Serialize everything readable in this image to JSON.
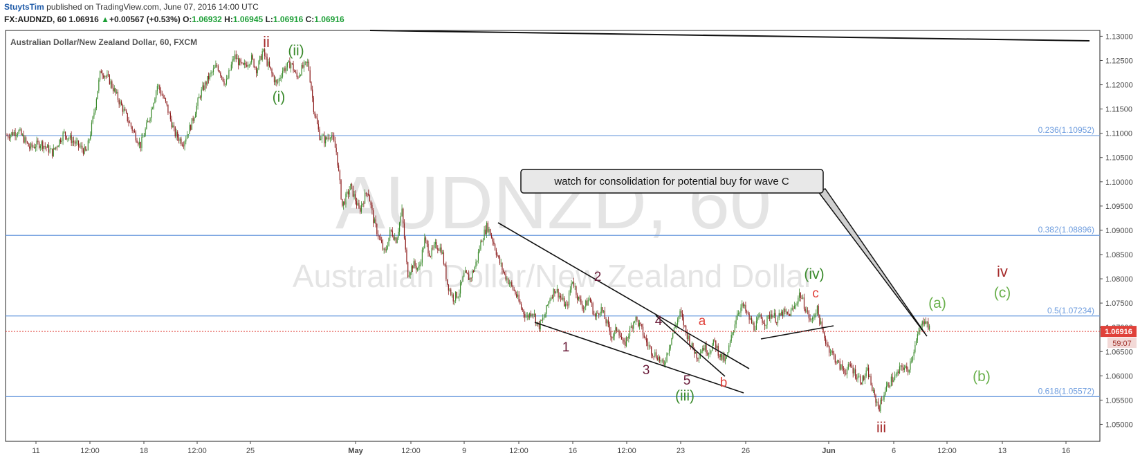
{
  "header": {
    "author": "StuytsTim",
    "published": "published on TradingView.com, June 07, 2016 14:00 UTC",
    "symbol": "FX:AUDNZD, 60",
    "last": "1.06916",
    "change_arrow": "▲",
    "change": "+0.00567 (+0.53%)",
    "open_label": "O:",
    "open": "1.06932",
    "high_label": "H:",
    "high": "1.06945",
    "low_label": "L:",
    "low": "1.06916",
    "close_label": "C:",
    "close": "1.06916"
  },
  "chart_data": {
    "type": "line",
    "title": "Australian Dollar/New Zealand Dollar, 60, FXCM",
    "watermark_symbol": "AUDNZD, 60",
    "watermark_name": "Australian Dollar/New Zealand Dollar",
    "ylim": [
      1.0465,
      1.1312
    ],
    "y_ticks": [
      "1.13000",
      "1.12500",
      "1.12000",
      "1.11500",
      "1.11000",
      "1.10500",
      "1.10000",
      "1.09500",
      "1.09000",
      "1.08500",
      "1.08000",
      "1.07500",
      "1.07000",
      "1.06500",
      "1.06000",
      "1.05500",
      "1.05000"
    ],
    "x_ticks": [
      "11",
      "12:00",
      "18",
      "12:00",
      "25",
      "May",
      "12:00",
      "9",
      "12:00",
      "16",
      "12:00",
      "23",
      "26",
      "Jun",
      "6",
      "12:00",
      "13",
      "16"
    ],
    "x_tick_bold": [
      "May",
      "Jun"
    ],
    "price_points": [
      [
        0,
        1.1095
      ],
      [
        0.04,
        1.1105
      ],
      [
        0.08,
        1.107
      ],
      [
        0.12,
        1.108
      ],
      [
        0.16,
        1.106
      ],
      [
        0.2,
        1.11
      ],
      [
        0.24,
        1.108
      ],
      [
        0.28,
        1.106
      ],
      [
        0.3,
        1.112
      ],
      [
        0.33,
        1.123
      ],
      [
        0.36,
        1.121
      ],
      [
        0.4,
        1.116
      ],
      [
        0.44,
        1.111
      ],
      [
        0.47,
        1.1075
      ],
      [
        0.5,
        1.113
      ],
      [
        0.53,
        1.12
      ],
      [
        0.56,
        1.116
      ],
      [
        0.59,
        1.11
      ],
      [
        0.62,
        1.108
      ],
      [
        0.65,
        1.112
      ],
      [
        0.68,
        1.118
      ],
      [
        0.71,
        1.1215
      ],
      [
        0.74,
        1.124
      ],
      [
        0.77,
        1.12
      ],
      [
        0.8,
        1.126
      ],
      [
        0.83,
        1.1235
      ],
      [
        0.86,
        1.1255
      ],
      [
        0.88,
        1.123
      ],
      [
        0.9,
        1.127
      ],
      [
        0.93,
        1.1225
      ],
      [
        0.95,
        1.12
      ],
      [
        0.97,
        1.123
      ],
      [
        1.0,
        1.1245
      ],
      [
        1.02,
        1.1215
      ],
      [
        1.04,
        1.1235
      ],
      [
        1.06,
        1.1245
      ],
      [
        1.08,
        1.115
      ],
      [
        1.1,
        1.1095
      ],
      [
        1.12,
        1.1085
      ],
      [
        1.14,
        1.11
      ],
      [
        1.16,
        1.106
      ],
      [
        1.18,
        1.095
      ],
      [
        1.21,
        1.099
      ],
      [
        1.24,
        1.094
      ],
      [
        1.27,
        1.0985
      ],
      [
        1.29,
        1.092
      ],
      [
        1.31,
        1.0885
      ],
      [
        1.33,
        1.085
      ],
      [
        1.35,
        1.09
      ],
      [
        1.37,
        1.088
      ],
      [
        1.39,
        1.094
      ],
      [
        1.41,
        1.081
      ],
      [
        1.43,
        1.083
      ],
      [
        1.45,
        1.082
      ],
      [
        1.47,
        1.088
      ],
      [
        1.49,
        1.085
      ],
      [
        1.51,
        1.087
      ],
      [
        1.53,
        1.086
      ],
      [
        1.55,
        1.079
      ],
      [
        1.57,
        1.076
      ],
      [
        1.59,
        1.077
      ],
      [
        1.61,
        1.081
      ],
      [
        1.63,
        1.08
      ],
      [
        1.65,
        1.083
      ],
      [
        1.67,
        1.088
      ],
      [
        1.69,
        1.091
      ],
      [
        1.71,
        1.088
      ],
      [
        1.73,
        1.084
      ],
      [
        1.75,
        1.081
      ],
      [
        1.77,
        1.079
      ],
      [
        1.79,
        1.077
      ],
      [
        1.81,
        1.074
      ],
      [
        1.83,
        1.072
      ],
      [
        1.85,
        1.0735
      ],
      [
        1.87,
        1.07
      ],
      [
        1.89,
        1.072
      ],
      [
        1.91,
        1.076
      ],
      [
        1.93,
        1.078
      ],
      [
        1.95,
        1.076
      ],
      [
        1.97,
        1.074
      ],
      [
        1.99,
        1.08
      ],
      [
        2.01,
        1.076
      ],
      [
        2.03,
        1.074
      ],
      [
        2.05,
        1.076
      ],
      [
        2.07,
        1.072
      ],
      [
        2.09,
        1.074
      ],
      [
        2.11,
        1.071
      ],
      [
        2.13,
        1.068
      ],
      [
        2.15,
        1.07
      ],
      [
        2.17,
        1.066
      ],
      [
        2.19,
        1.069
      ],
      [
        2.21,
        1.072
      ],
      [
        2.23,
        1.07
      ],
      [
        2.25,
        1.067
      ],
      [
        2.27,
        1.065
      ],
      [
        2.29,
        1.064
      ],
      [
        2.31,
        1.062
      ],
      [
        2.33,
        1.066
      ],
      [
        2.35,
        1.07
      ],
      [
        2.37,
        1.073
      ],
      [
        2.39,
        1.069
      ],
      [
        2.41,
        1.066
      ],
      [
        2.43,
        1.064
      ],
      [
        2.45,
        1.066
      ],
      [
        2.47,
        1.065
      ],
      [
        2.49,
        1.067
      ],
      [
        2.51,
        1.064
      ],
      [
        2.53,
        1.063
      ],
      [
        2.55,
        1.068
      ],
      [
        2.57,
        1.073
      ],
      [
        2.59,
        1.0745
      ],
      [
        2.61,
        1.072
      ],
      [
        2.63,
        1.07
      ],
      [
        2.65,
        1.072
      ],
      [
        2.67,
        1.071
      ],
      [
        2.69,
        1.073
      ],
      [
        2.71,
        1.0715
      ],
      [
        2.73,
        1.073
      ],
      [
        2.75,
        1.0725
      ],
      [
        2.77,
        1.074
      ],
      [
        2.79,
        1.077
      ],
      [
        2.81,
        1.074
      ],
      [
        2.83,
        1.071
      ],
      [
        2.85,
        1.074
      ],
      [
        2.87,
        1.069
      ],
      [
        2.89,
        1.066
      ],
      [
        2.91,
        1.064
      ],
      [
        2.93,
        1.062
      ],
      [
        2.95,
        1.061
      ],
      [
        2.97,
        1.062
      ],
      [
        2.99,
        1.06
      ],
      [
        3.01,
        1.059
      ],
      [
        3.03,
        1.061
      ],
      [
        3.05,
        1.056
      ],
      [
        3.07,
        1.0535
      ],
      [
        3.09,
        1.057
      ],
      [
        3.11,
        1.059
      ],
      [
        3.13,
        1.06
      ],
      [
        3.15,
        1.062
      ],
      [
        3.17,
        1.061
      ],
      [
        3.19,
        1.065
      ],
      [
        3.21,
        1.069
      ],
      [
        3.23,
        1.072
      ],
      [
        3.25,
        1.069
      ]
    ],
    "hlines": [
      {
        "label": "0.236(1.10952)",
        "value": 1.10952,
        "color": "#6b9bde"
      },
      {
        "label": "0.382(1.08896)",
        "value": 1.08896,
        "color": "#6b9bde"
      },
      {
        "label": "0.5(1.07234)",
        "value": 1.07234,
        "color": "#6b9bde"
      },
      {
        "label": "0.618(1.05572)",
        "value": 1.05572,
        "color": "#6b9bde"
      }
    ],
    "last_price": {
      "value": 1.06916,
      "label": "1.06916",
      "countdown": "59:07",
      "color": "#e0413a"
    },
    "wave_labels": [
      {
        "text": "ii",
        "color": "#a52a2a"
      },
      {
        "text": "(ii)",
        "color": "#3a8a2c"
      },
      {
        "text": "(i)",
        "color": "#3a8a2c"
      },
      {
        "text": "1",
        "color": "#6b1e3b"
      },
      {
        "text": "2",
        "color": "#6b1e3b"
      },
      {
        "text": "3",
        "color": "#6b1e3b"
      },
      {
        "text": "4",
        "color": "#6b1e3b"
      },
      {
        "text": "5",
        "color": "#6b1e3b"
      },
      {
        "text": "(iii)",
        "color": "#3a8a2c"
      },
      {
        "text": "a",
        "color": "#e0413a"
      },
      {
        "text": "b",
        "color": "#e0413a"
      },
      {
        "text": "(iv)",
        "color": "#3a8a2c"
      },
      {
        "text": "c",
        "color": "#e0413a"
      },
      {
        "text": "iii",
        "color": "#a52a2a"
      },
      {
        "text": "(a)",
        "color": "#6ab04c"
      },
      {
        "text": "iv",
        "color": "#a52a2a"
      },
      {
        "text": "(c)",
        "color": "#6ab04c"
      },
      {
        "text": "(b)",
        "color": "#6ab04c"
      }
    ],
    "callout": "watch for consolidation for potential buy for wave C",
    "grid": false,
    "colors": {
      "up_candle": "#3a8a2c",
      "down_candle": "#8b1a1a",
      "axis_text": "#444444"
    }
  }
}
